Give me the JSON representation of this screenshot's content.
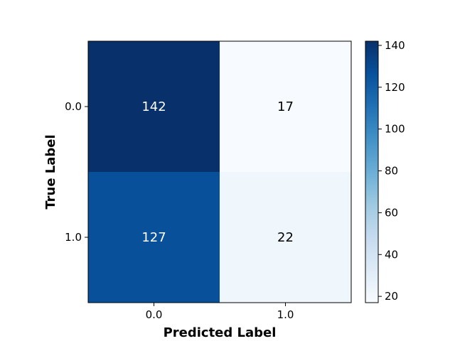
{
  "chart_data": {
    "type": "heatmap",
    "title": "",
    "xlabel": "Predicted Label",
    "ylabel": "True Label",
    "x_categories": [
      "0.0",
      "1.0"
    ],
    "y_categories": [
      "0.0",
      "1.0"
    ],
    "values": [
      [
        142,
        17
      ],
      [
        127,
        22
      ]
    ],
    "colormap": "Blues",
    "colorbar": {
      "min": 17,
      "max": 142,
      "ticks": [
        "20",
        "40",
        "60",
        "80",
        "100",
        "120",
        "140"
      ]
    },
    "grid": false
  }
}
